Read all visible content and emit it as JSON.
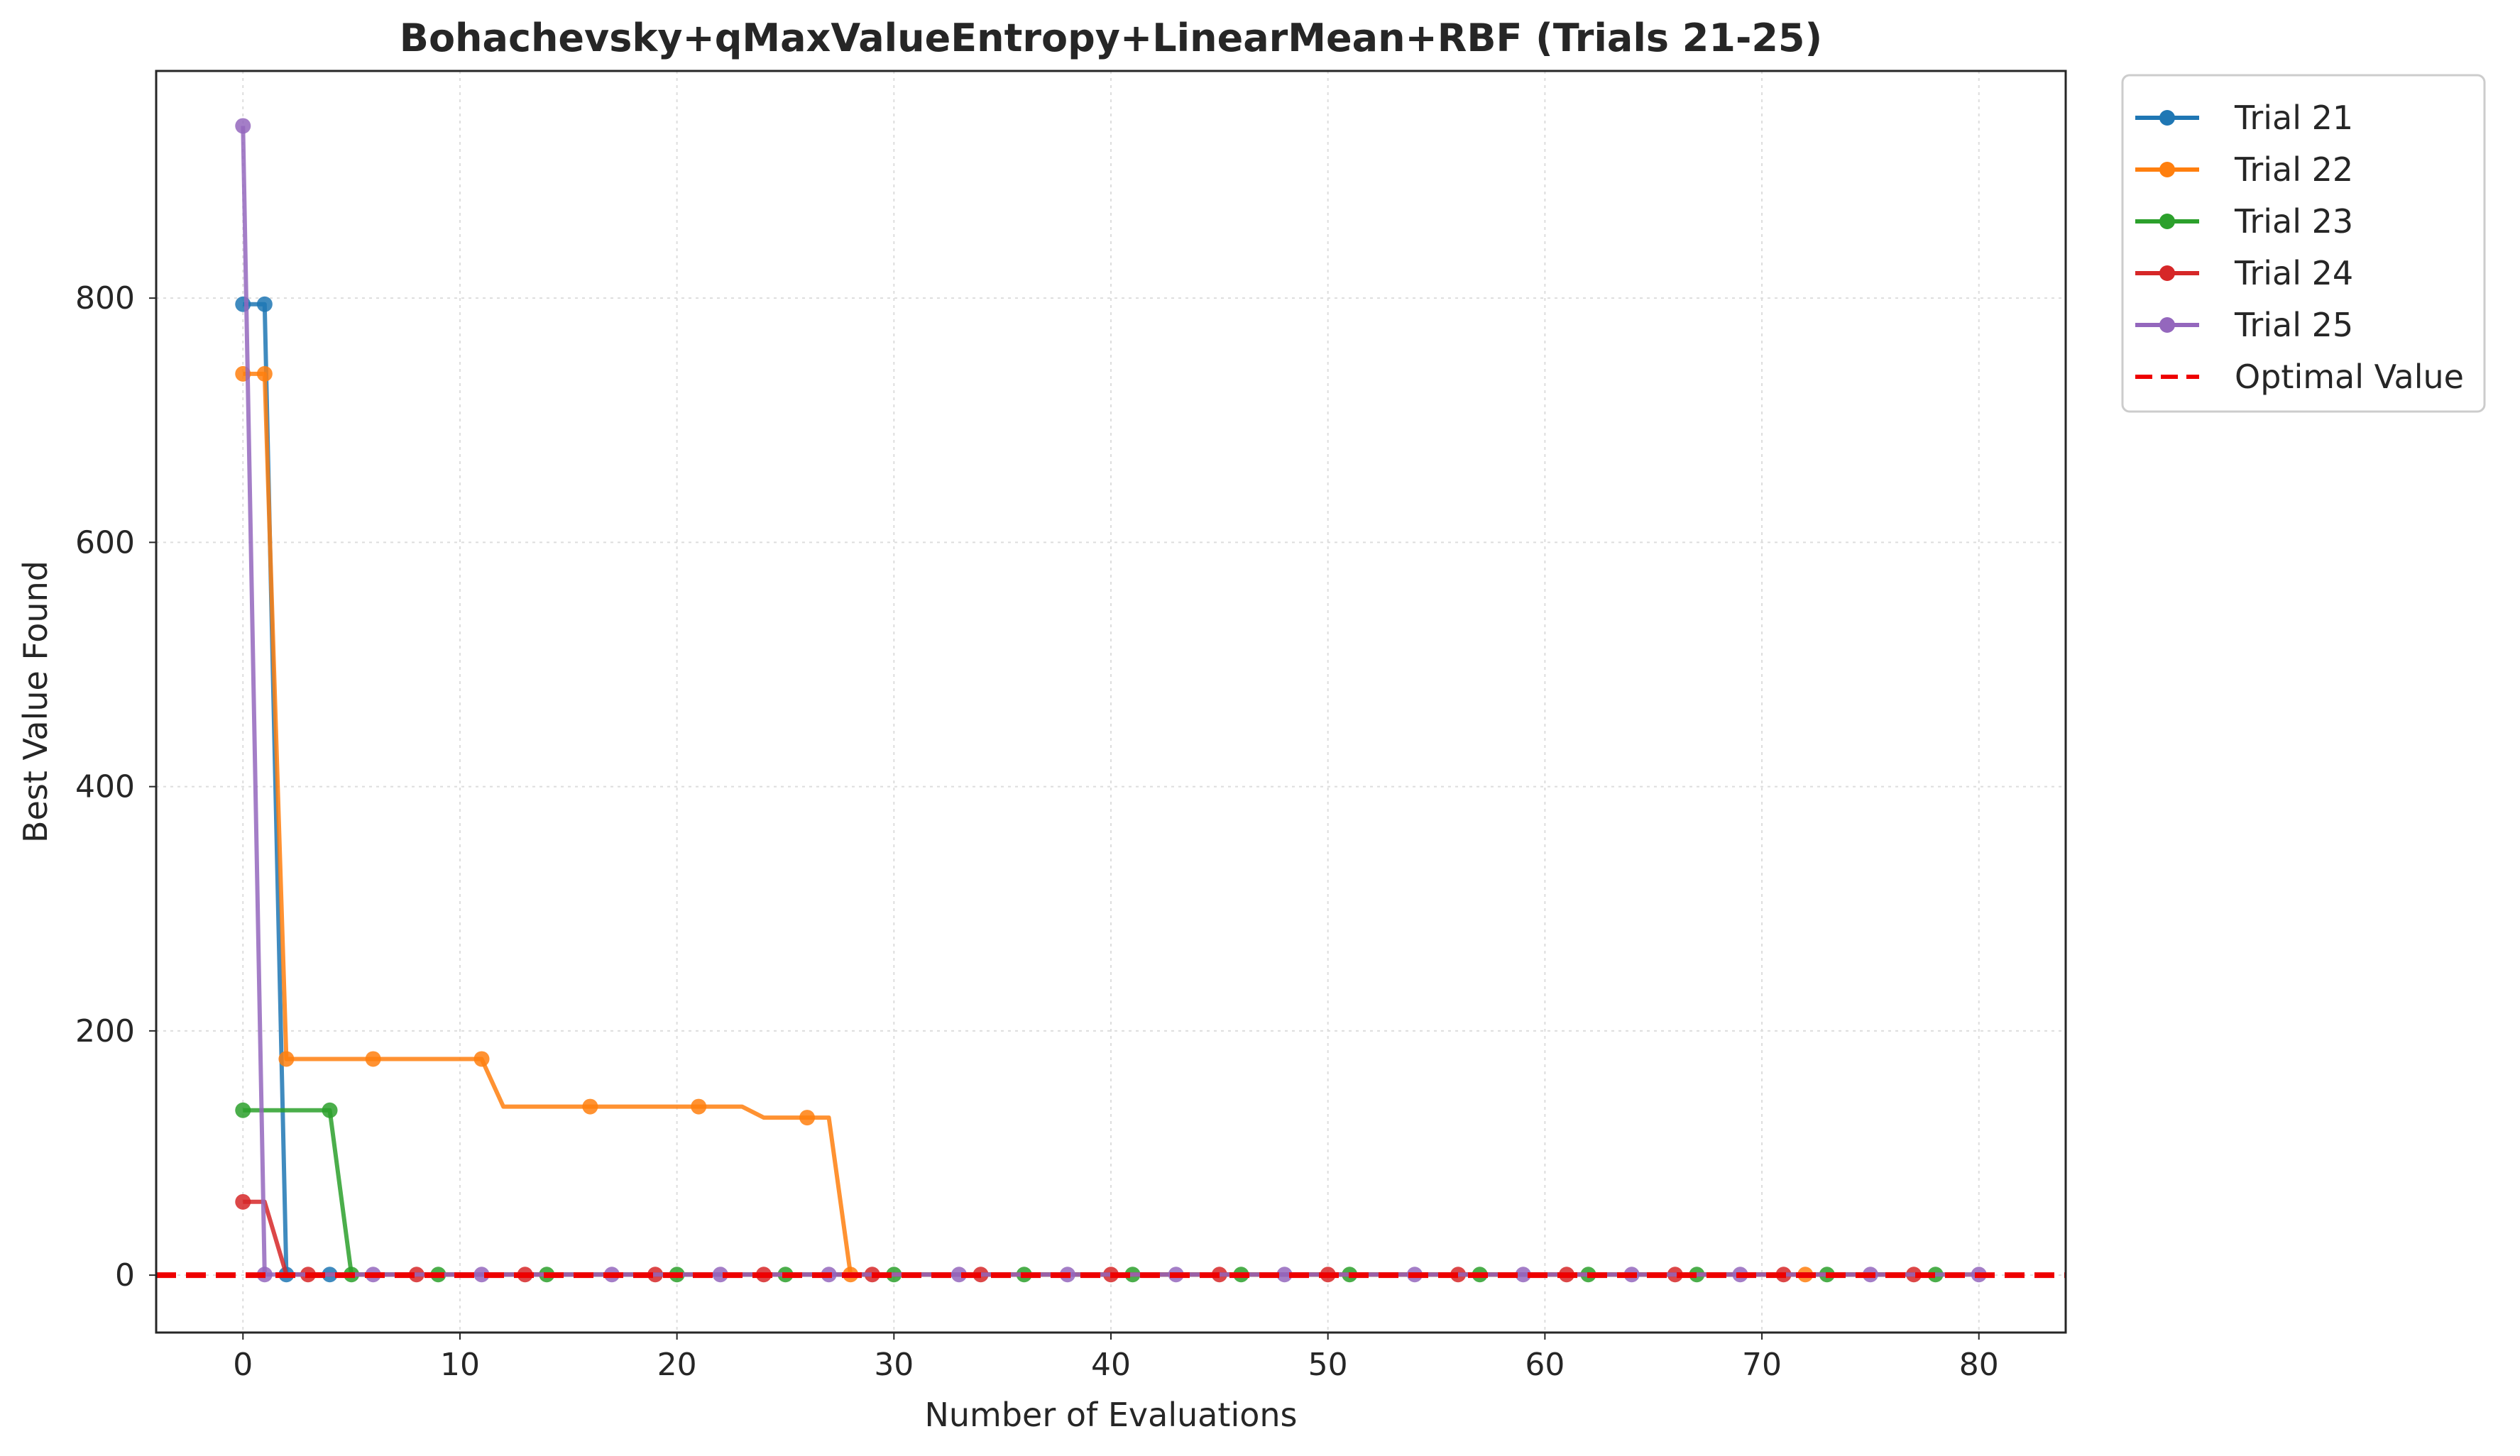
{
  "chart_data": {
    "type": "line",
    "title": "Bohachevsky+qMaxValueEntropy+LinearMean+RBF (Trials 21-25)",
    "xlabel": "Number of Evaluations",
    "ylabel": "Best Value Found",
    "xlim": [
      -4,
      84
    ],
    "ylim": [
      -47,
      986
    ],
    "xticks": [
      0,
      10,
      20,
      30,
      40,
      50,
      60,
      70,
      80
    ],
    "yticks": [
      0,
      200,
      400,
      600,
      800
    ],
    "grid": true,
    "legend_position": "outside-top-right",
    "optimal_value": 0,
    "series": [
      {
        "name": "Trial 21",
        "color": "#1f77b4",
        "x": [
          0,
          1,
          2,
          3,
          4,
          5,
          6,
          7,
          8,
          9,
          10,
          11,
          12,
          13,
          14,
          15,
          16,
          17,
          18,
          19,
          20,
          21,
          22,
          23,
          24,
          25,
          26,
          27,
          28,
          29,
          30,
          31,
          32,
          33,
          34,
          35,
          36,
          37,
          38,
          39,
          40,
          41,
          42,
          43,
          44,
          45,
          46,
          47,
          48,
          49,
          50,
          51,
          52,
          53,
          54,
          55,
          56,
          57,
          58,
          59,
          60,
          61,
          62,
          63,
          64,
          65,
          66,
          67,
          68,
          69,
          70,
          71,
          72,
          73,
          74,
          75,
          76,
          77,
          78,
          79,
          80
        ],
        "y": [
          795,
          795,
          0.5,
          0.5,
          0.5,
          0.5,
          0.5,
          0.5,
          0.5,
          0.5,
          0.5,
          0.5,
          0.5,
          0.5,
          0.5,
          0.5,
          0.5,
          0.5,
          0.5,
          0.5,
          0.5,
          0.5,
          0.5,
          0.5,
          0.5,
          0.5,
          0.5,
          0.5,
          0.5,
          0.5,
          0.5,
          0.5,
          0.5,
          0.5,
          0.5,
          0.5,
          0.5,
          0.5,
          0.5,
          0.5,
          0.5,
          0.5,
          0.5,
          0.5,
          0.5,
          0.5,
          0.5,
          0.5,
          0.5,
          0.5,
          0.5,
          0.5,
          0.5,
          0.5,
          0.5,
          0.5,
          0.5,
          0.5,
          0.5,
          0.5,
          0.5,
          0.5,
          0.5,
          0.5,
          0.5,
          0.5,
          0.5,
          0.5,
          0.5,
          0.5,
          0.5,
          0.5,
          0.5,
          0.5,
          0.5,
          0.5,
          0.5,
          0.5,
          0.5,
          0.5,
          0.5
        ],
        "markers_at": [
          0,
          1,
          2,
          4
        ]
      },
      {
        "name": "Trial 22",
        "color": "#ff7f0e",
        "x": [
          0,
          1,
          2,
          3,
          4,
          5,
          6,
          7,
          8,
          9,
          10,
          11,
          12,
          13,
          14,
          15,
          16,
          17,
          18,
          19,
          20,
          21,
          22,
          23,
          24,
          25,
          26,
          27,
          28,
          29,
          30,
          35,
          40,
          45,
          50,
          55,
          60,
          65,
          70,
          72,
          75,
          80
        ],
        "y": [
          738,
          738,
          177,
          177,
          177,
          177,
          177,
          177,
          177,
          177,
          177,
          177,
          138,
          138,
          138,
          138,
          138,
          138,
          138,
          138,
          138,
          138,
          138,
          138,
          129,
          129,
          129,
          129,
          0.5,
          0.5,
          0.5,
          0.5,
          0.5,
          0.5,
          0.5,
          0.5,
          0.5,
          0.5,
          0.5,
          0.5,
          0.5,
          0.5
        ],
        "markers_at": [
          0,
          1,
          2,
          6,
          11,
          16,
          21,
          26,
          28,
          72
        ]
      },
      {
        "name": "Trial 23",
        "color": "#2ca02c",
        "x": [
          0,
          1,
          2,
          3,
          4,
          5,
          9,
          14,
          20,
          25,
          30,
          36,
          41,
          46,
          51,
          57,
          62,
          67,
          73,
          78
        ],
        "y": [
          135,
          135,
          135,
          135,
          135,
          0.5,
          0.5,
          0.5,
          0.5,
          0.5,
          0.5,
          0.5,
          0.5,
          0.5,
          0.5,
          0.5,
          0.5,
          0.5,
          0.5,
          0.5
        ],
        "markers_at": [
          0,
          4,
          5,
          9,
          14,
          20,
          25,
          30,
          36,
          41,
          46,
          51,
          57,
          62,
          67,
          73,
          78
        ]
      },
      {
        "name": "Trial 24",
        "color": "#d62728",
        "x": [
          0,
          1,
          2,
          3,
          8,
          13,
          19,
          24,
          29,
          34,
          40,
          45,
          50,
          56,
          61,
          66,
          71,
          77
        ],
        "y": [
          60,
          60,
          0.5,
          0.5,
          0.5,
          0.5,
          0.5,
          0.5,
          0.5,
          0.5,
          0.5,
          0.5,
          0.5,
          0.5,
          0.5,
          0.5,
          0.5,
          0.5
        ],
        "markers_at": [
          0,
          3,
          8,
          13,
          19,
          24,
          29,
          34,
          40,
          45,
          50,
          56,
          61,
          66,
          71,
          77
        ]
      },
      {
        "name": "Trial 25",
        "color": "#9467bd",
        "x": [
          0,
          1,
          6,
          11,
          17,
          22,
          27,
          33,
          38,
          43,
          48,
          54,
          59,
          64,
          69,
          75,
          80
        ],
        "y": [
          941,
          0.5,
          0.5,
          0.5,
          0.5,
          0.5,
          0.5,
          0.5,
          0.5,
          0.5,
          0.5,
          0.5,
          0.5,
          0.5,
          0.5,
          0.5,
          0.5
        ],
        "markers_at": [
          0,
          1,
          6,
          11,
          17,
          22,
          27,
          33,
          38,
          43,
          48,
          54,
          59,
          64,
          69,
          75,
          80
        ]
      }
    ],
    "reference_line": {
      "name": "Optimal Value",
      "value": 0,
      "color": "#ee0000",
      "style": "dashed"
    }
  }
}
